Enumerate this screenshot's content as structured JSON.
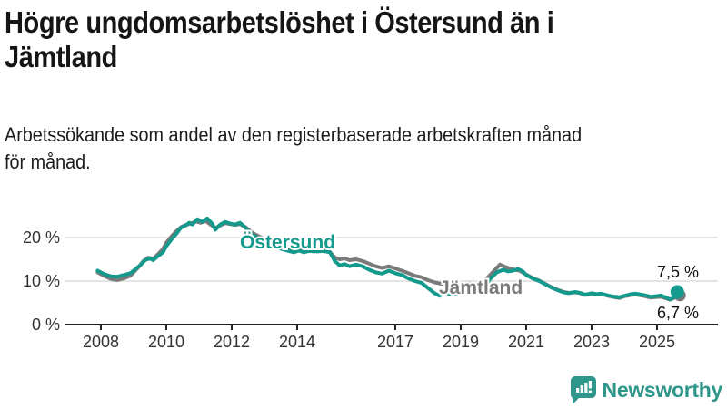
{
  "header": {
    "title_lines": [
      "Högre ungdomsarbetslöshet i Östersund än i",
      "Jämtland"
    ],
    "subtitle_lines": [
      "Arbetssökande som andel av den registerbaserade arbetskraften månad",
      "för månad."
    ]
  },
  "chart_data": {
    "type": "line",
    "title": "Högre ungdomsarbetslöshet i Östersund än i Jämtland",
    "subtitle": "Arbetssökande som andel av den registerbaserade arbetskraften månad för månad.",
    "xlabel": "",
    "ylabel": "",
    "grid": "horizontal",
    "legend_position": "inline-labels",
    "xlim": [
      2007.6,
      2026.0
    ],
    "ylim": [
      0,
      26
    ],
    "y_ticks": [
      0,
      10,
      20
    ],
    "y_tick_labels": [
      "0 %",
      "10 %",
      "20 %"
    ],
    "x_ticks": [
      2008,
      2010,
      2012,
      2014,
      2017,
      2019,
      2021,
      2023,
      2025
    ],
    "x_tick_labels": [
      "2008",
      "2010",
      "2012",
      "2014",
      "2017",
      "2019",
      "2021",
      "2023",
      "2025"
    ],
    "series": [
      {
        "name": "Jämtland",
        "color": "#7a7a7a",
        "end_value": 6.7,
        "end_label": "6,7 %",
        "points": [
          [
            2007.9,
            12.0
          ],
          [
            2008.1,
            11.2
          ],
          [
            2008.3,
            10.5
          ],
          [
            2008.5,
            10.2
          ],
          [
            2008.7,
            10.6
          ],
          [
            2008.9,
            11.2
          ],
          [
            2009.0,
            12.0
          ],
          [
            2009.15,
            13.2
          ],
          [
            2009.3,
            14.6
          ],
          [
            2009.45,
            15.4
          ],
          [
            2009.6,
            15.1
          ],
          [
            2009.75,
            16.2
          ],
          [
            2009.9,
            17.4
          ],
          [
            2010.0,
            18.8
          ],
          [
            2010.15,
            20.2
          ],
          [
            2010.3,
            21.4
          ],
          [
            2010.45,
            22.4
          ],
          [
            2010.6,
            22.9
          ],
          [
            2010.75,
            23.2
          ],
          [
            2010.9,
            23.7
          ],
          [
            2011.05,
            23.4
          ],
          [
            2011.2,
            23.8
          ],
          [
            2011.35,
            23.0
          ],
          [
            2011.5,
            22.2
          ],
          [
            2011.65,
            22.8
          ],
          [
            2011.8,
            23.3
          ],
          [
            2011.95,
            23.1
          ],
          [
            2012.1,
            22.9
          ],
          [
            2012.25,
            23.1
          ],
          [
            2012.4,
            22.5
          ],
          [
            2012.55,
            21.6
          ],
          [
            2012.7,
            20.8
          ],
          [
            2012.9,
            20.0
          ],
          [
            2013.1,
            19.0
          ],
          [
            2013.4,
            18.2
          ],
          [
            2013.7,
            17.4
          ],
          [
            2013.9,
            17.0
          ],
          [
            2014.05,
            17.2
          ],
          [
            2014.2,
            16.8
          ],
          [
            2014.4,
            17.0
          ],
          [
            2014.6,
            16.9
          ],
          [
            2014.8,
            17.0
          ],
          [
            2015.0,
            16.7
          ],
          [
            2015.15,
            15.4
          ],
          [
            2015.3,
            15.0
          ],
          [
            2015.45,
            15.2
          ],
          [
            2015.6,
            14.8
          ],
          [
            2015.8,
            15.0
          ],
          [
            2016.0,
            14.6
          ],
          [
            2016.2,
            14.0
          ],
          [
            2016.4,
            13.4
          ],
          [
            2016.6,
            13.0
          ],
          [
            2016.8,
            13.4
          ],
          [
            2017.0,
            12.9
          ],
          [
            2017.2,
            12.4
          ],
          [
            2017.4,
            11.8
          ],
          [
            2017.6,
            11.2
          ],
          [
            2017.8,
            10.9
          ],
          [
            2018.0,
            10.2
          ],
          [
            2018.2,
            9.7
          ],
          [
            2018.4,
            9.4
          ],
          [
            2018.6,
            9.2
          ],
          [
            2018.8,
            9.0
          ],
          [
            2019.0,
            9.3
          ],
          [
            2019.2,
            9.5
          ],
          [
            2019.4,
            9.2
          ],
          [
            2019.6,
            9.6
          ],
          [
            2019.8,
            10.6
          ],
          [
            2020.0,
            12.2
          ],
          [
            2020.2,
            13.8
          ],
          [
            2020.35,
            13.3
          ],
          [
            2020.5,
            12.9
          ],
          [
            2020.65,
            12.6
          ],
          [
            2020.8,
            12.4
          ],
          [
            2021.0,
            11.5
          ],
          [
            2021.2,
            10.7
          ],
          [
            2021.4,
            10.1
          ],
          [
            2021.6,
            9.3
          ],
          [
            2021.8,
            8.5
          ],
          [
            2022.0,
            7.9
          ],
          [
            2022.15,
            7.5
          ],
          [
            2022.3,
            7.3
          ],
          [
            2022.5,
            7.4
          ],
          [
            2022.65,
            7.2
          ],
          [
            2022.8,
            6.8
          ],
          [
            2023.0,
            7.1
          ],
          [
            2023.15,
            6.9
          ],
          [
            2023.3,
            7.0
          ],
          [
            2023.5,
            6.6
          ],
          [
            2023.7,
            6.3
          ],
          [
            2023.85,
            6.1
          ],
          [
            2024.0,
            6.5
          ],
          [
            2024.2,
            6.8
          ],
          [
            2024.35,
            6.9
          ],
          [
            2024.5,
            6.7
          ],
          [
            2024.65,
            6.5
          ],
          [
            2024.8,
            6.2
          ],
          [
            2024.95,
            6.3
          ],
          [
            2025.1,
            6.4
          ],
          [
            2025.25,
            6.1
          ],
          [
            2025.4,
            5.7
          ],
          [
            2025.55,
            6.2
          ],
          [
            2025.7,
            6.7
          ]
        ]
      },
      {
        "name": "Östersund",
        "color": "#149a8d",
        "end_value": 7.5,
        "end_label": "7,5 %",
        "points": [
          [
            2007.9,
            12.4
          ],
          [
            2008.1,
            11.6
          ],
          [
            2008.3,
            11.1
          ],
          [
            2008.5,
            11.0
          ],
          [
            2008.7,
            11.4
          ],
          [
            2008.9,
            11.8
          ],
          [
            2009.0,
            12.4
          ],
          [
            2009.2,
            13.6
          ],
          [
            2009.35,
            14.8
          ],
          [
            2009.5,
            15.2
          ],
          [
            2009.6,
            14.8
          ],
          [
            2009.75,
            15.8
          ],
          [
            2009.9,
            16.6
          ],
          [
            2010.0,
            18.0
          ],
          [
            2010.15,
            19.5
          ],
          [
            2010.3,
            20.8
          ],
          [
            2010.45,
            22.3
          ],
          [
            2010.6,
            22.8
          ],
          [
            2010.7,
            23.4
          ],
          [
            2010.8,
            23.0
          ],
          [
            2010.95,
            24.2
          ],
          [
            2011.1,
            23.6
          ],
          [
            2011.25,
            24.4
          ],
          [
            2011.4,
            23.2
          ],
          [
            2011.5,
            21.8
          ],
          [
            2011.65,
            23.0
          ],
          [
            2011.8,
            23.6
          ],
          [
            2011.95,
            23.2
          ],
          [
            2012.1,
            23.0
          ],
          [
            2012.25,
            23.4
          ],
          [
            2012.4,
            22.4
          ],
          [
            2012.55,
            21.2
          ],
          [
            2012.7,
            20.3
          ],
          [
            2012.9,
            19.4
          ],
          [
            2013.1,
            18.4
          ],
          [
            2013.4,
            17.6
          ],
          [
            2013.7,
            17.0
          ],
          [
            2013.9,
            16.6
          ],
          [
            2014.05,
            17.0
          ],
          [
            2014.2,
            16.6
          ],
          [
            2014.35,
            16.9
          ],
          [
            2014.6,
            16.8
          ],
          [
            2014.8,
            16.9
          ],
          [
            2015.0,
            16.6
          ],
          [
            2015.15,
            14.6
          ],
          [
            2015.3,
            13.6
          ],
          [
            2015.45,
            13.9
          ],
          [
            2015.6,
            13.4
          ],
          [
            2015.8,
            13.8
          ],
          [
            2016.0,
            13.4
          ],
          [
            2016.2,
            12.6
          ],
          [
            2016.4,
            12.0
          ],
          [
            2016.6,
            11.7
          ],
          [
            2016.8,
            12.4
          ],
          [
            2017.0,
            11.8
          ],
          [
            2017.2,
            11.4
          ],
          [
            2017.4,
            10.6
          ],
          [
            2017.6,
            10.0
          ],
          [
            2017.8,
            9.6
          ],
          [
            2018.0,
            8.4
          ],
          [
            2018.2,
            7.2
          ],
          [
            2018.35,
            6.6
          ],
          [
            2018.5,
            7.4
          ],
          [
            2018.65,
            7.0
          ],
          [
            2018.8,
            6.9
          ],
          [
            2019.0,
            7.2
          ],
          [
            2019.15,
            7.5
          ],
          [
            2019.3,
            7.1
          ],
          [
            2019.45,
            7.3
          ],
          [
            2019.7,
            8.5
          ],
          [
            2019.9,
            10.5
          ],
          [
            2020.1,
            12.0
          ],
          [
            2020.3,
            12.6
          ],
          [
            2020.45,
            12.2
          ],
          [
            2020.6,
            12.4
          ],
          [
            2020.75,
            12.8
          ],
          [
            2020.9,
            12.2
          ],
          [
            2021.0,
            11.4
          ],
          [
            2021.2,
            10.6
          ],
          [
            2021.4,
            10.0
          ],
          [
            2021.6,
            9.2
          ],
          [
            2021.8,
            8.4
          ],
          [
            2022.0,
            7.8
          ],
          [
            2022.15,
            7.4
          ],
          [
            2022.3,
            7.2
          ],
          [
            2022.5,
            7.5
          ],
          [
            2022.65,
            7.3
          ],
          [
            2022.8,
            6.9
          ],
          [
            2023.0,
            7.2
          ],
          [
            2023.15,
            7.0
          ],
          [
            2023.3,
            7.1
          ],
          [
            2023.5,
            6.7
          ],
          [
            2023.7,
            6.4
          ],
          [
            2023.85,
            6.3
          ],
          [
            2024.0,
            6.6
          ],
          [
            2024.2,
            7.0
          ],
          [
            2024.35,
            7.1
          ],
          [
            2024.5,
            6.9
          ],
          [
            2024.65,
            6.7
          ],
          [
            2024.8,
            6.4
          ],
          [
            2024.95,
            6.5
          ],
          [
            2025.1,
            6.7
          ],
          [
            2025.25,
            6.3
          ],
          [
            2025.4,
            5.8
          ],
          [
            2025.5,
            6.2
          ],
          [
            2025.62,
            7.5
          ]
        ]
      }
    ]
  },
  "footer": {
    "brand": "Newsworthy",
    "brand_color": "#2e968a",
    "logo_icon": "bar-chart-speech-bubble-icon"
  },
  "colors": {
    "oestersund": "#149a8d",
    "jamtland": "#7a7a7a",
    "grid": "#dcdcdc",
    "axis": "#222222",
    "tick_text": "#333333",
    "value_text": "#111111"
  }
}
